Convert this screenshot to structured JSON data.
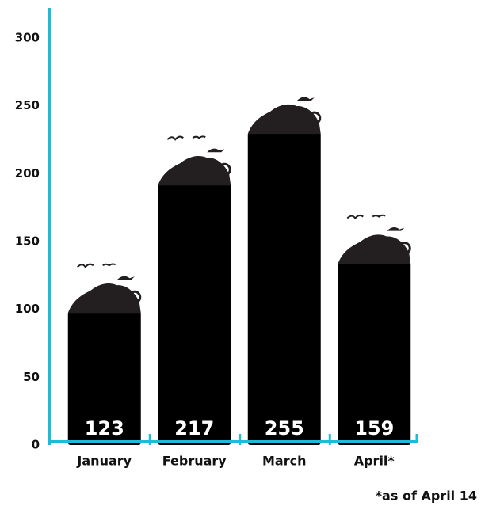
{
  "chart_data": {
    "type": "bar",
    "categories": [
      "January",
      "February",
      "March",
      "April*"
    ],
    "values": [
      123,
      217,
      255,
      159
    ],
    "color": "#000000",
    "axis_color": "#1bbcd6",
    "ylim": [
      0,
      300
    ],
    "yticks": [
      0,
      50,
      100,
      150,
      200,
      250,
      300
    ],
    "annotation": "*as of April 14"
  }
}
